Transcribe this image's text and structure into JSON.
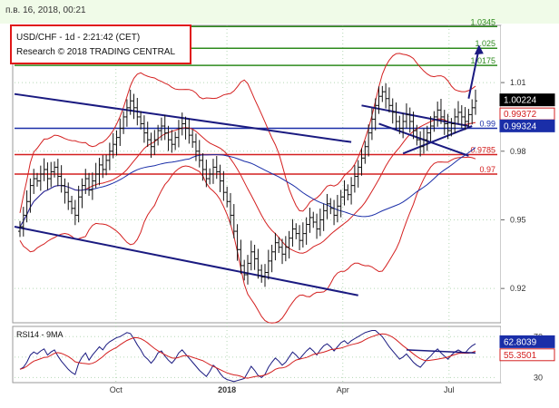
{
  "window": {
    "timestamp": "п.в. 16, 2018, 00:21"
  },
  "header": {
    "line1": "USD/CHF - 1d - 2:21:42 (CET)",
    "line2": "Research © 2018 TRADING CENTRAL"
  },
  "chart_data": {
    "type": "candlestick",
    "price_axis": {
      "ylim": [
        0.905,
        1.035
      ],
      "ticks": [
        "1.01",
        "0.98",
        "0.95",
        "0.92"
      ]
    },
    "time_axis": [
      "Oct",
      "2018",
      "Apr",
      "Jul"
    ],
    "levels": [
      {
        "value": 1.0345,
        "label": "1.0345",
        "color": "#2e8b1e"
      },
      {
        "value": 1.025,
        "label": "1.025",
        "color": "#2e8b1e"
      },
      {
        "value": 1.0175,
        "label": "1.0175",
        "color": "#2e8b1e"
      },
      {
        "value": 0.99,
        "label": "0.99",
        "color": "#1a2ea8"
      },
      {
        "value": 0.9785,
        "label": "0.9785",
        "color": "#d42020"
      },
      {
        "value": 0.97,
        "label": "0.97",
        "color": "#d42020"
      }
    ],
    "price_markers": [
      {
        "value": 1.00224,
        "label": "1.00224",
        "bg": "#000000",
        "fg": "#ffffff"
      },
      {
        "value": 0.99372,
        "label": "0.99372",
        "bg": "#ffffff",
        "fg": "#d42020"
      },
      {
        "value": 0.99324,
        "label": "0.99324",
        "bg": "#1a2ea8",
        "fg": "#ffffff"
      }
    ],
    "rsi": {
      "title": "RSI14 - 9MA",
      "ylim": [
        25,
        80
      ],
      "ticks": [
        "70",
        "50",
        "30"
      ],
      "markers": [
        {
          "value": 62.8039,
          "label": "62.8039",
          "bg": "#1a2ea8",
          "fg": "#ffffff"
        },
        {
          "value": 55.3501,
          "label": "55.3501",
          "bg": "#ffffff",
          "fg": "#d42020"
        }
      ]
    },
    "closes": [
      0.947,
      0.952,
      0.958,
      0.965,
      0.968,
      0.967,
      0.97,
      0.972,
      0.968,
      0.971,
      0.973,
      0.969,
      0.965,
      0.962,
      0.958,
      0.955,
      0.952,
      0.96,
      0.965,
      0.968,
      0.963,
      0.967,
      0.97,
      0.974,
      0.972,
      0.976,
      0.98,
      0.983,
      0.986,
      0.99,
      0.995,
      0.999,
      1.002,
      0.999,
      0.995,
      0.992,
      0.988,
      0.985,
      0.982,
      0.985,
      0.989,
      0.991,
      0.988,
      0.985,
      0.983,
      0.986,
      0.99,
      0.992,
      0.99,
      0.987,
      0.984,
      0.98,
      0.976,
      0.972,
      0.968,
      0.97,
      0.973,
      0.971,
      0.967,
      0.962,
      0.958,
      0.952,
      0.945,
      0.937,
      0.93,
      0.926,
      0.931,
      0.936,
      0.933,
      0.928,
      0.925,
      0.927,
      0.932,
      0.936,
      0.94,
      0.938,
      0.935,
      0.938,
      0.942,
      0.946,
      0.944,
      0.941,
      0.944,
      0.948,
      0.951,
      0.949,
      0.946,
      0.95,
      0.954,
      0.957,
      0.955,
      0.952,
      0.956,
      0.96,
      0.963,
      0.961,
      0.965,
      0.969,
      0.973,
      0.977,
      0.982,
      0.988,
      0.994,
      1.0,
      1.004,
      1.006,
      1.003,
      1.0,
      0.997,
      0.993,
      0.99,
      0.993,
      0.996,
      0.993,
      0.989,
      0.985,
      0.982,
      0.985,
      0.988,
      0.991,
      0.995,
      0.998,
      0.995,
      0.992,
      0.989,
      0.992,
      0.995,
      0.997,
      0.995,
      0.993,
      0.996,
      0.999,
      1.002
    ],
    "rsi_values": [
      38,
      40,
      45,
      52,
      55,
      53,
      56,
      58,
      52,
      55,
      57,
      51,
      46,
      42,
      38,
      35,
      33,
      44,
      50,
      54,
      47,
      52,
      56,
      60,
      57,
      62,
      65,
      67,
      69,
      70,
      72,
      74,
      73,
      68,
      62,
      57,
      51,
      48,
      44,
      48,
      54,
      56,
      51,
      47,
      44,
      48,
      54,
      57,
      53,
      49,
      45,
      41,
      37,
      34,
      31,
      36,
      42,
      39,
      34,
      30,
      28,
      27,
      26,
      27,
      28,
      29,
      35,
      41,
      37,
      32,
      30,
      33,
      40,
      45,
      49,
      46,
      42,
      45,
      50,
      55,
      52,
      48,
      52,
      56,
      59,
      56,
      52,
      57,
      61,
      63,
      60,
      56,
      60,
      64,
      66,
      63,
      66,
      68,
      70,
      72,
      74,
      75,
      76,
      76,
      73,
      70,
      65,
      60,
      56,
      52,
      48,
      50,
      53,
      49,
      45,
      42,
      40,
      44,
      48,
      51,
      55,
      58,
      54,
      51,
      48,
      52,
      55,
      57,
      55,
      54,
      58,
      61,
      63
    ]
  }
}
